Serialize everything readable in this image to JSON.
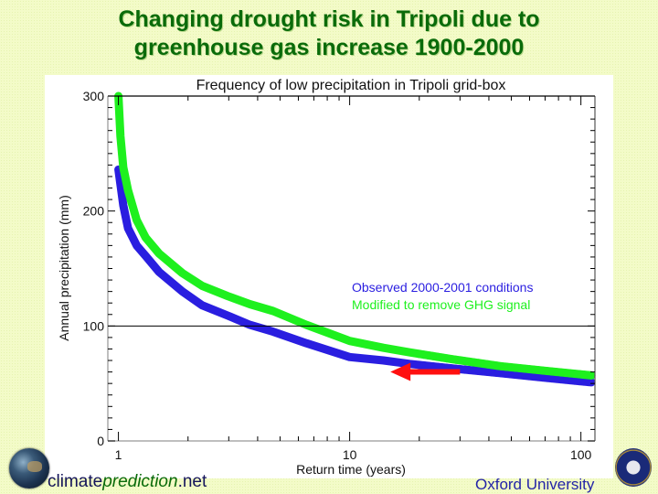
{
  "slide": {
    "title_line1": "Changing drought risk in Tripoli due to",
    "title_line2": "greenhouse gas increase 1900-2000",
    "footer_left_prefix": "climate",
    "footer_left_italic": "prediction",
    "footer_left_suffix": ".net",
    "footer_right": "Oxford University"
  },
  "chart_data": {
    "type": "scatter",
    "title": "Frequency of low precipitation in Tripoli grid-box",
    "xlabel": "Return time (years)",
    "ylabel": "Annual precipitation (mm)",
    "xscale": "log",
    "xlim": [
      0.9,
      115
    ],
    "ylim": [
      0,
      300
    ],
    "xticks": [
      1,
      10,
      100
    ],
    "xtick_labels": [
      "1",
      "10",
      "100"
    ],
    "yticks": [
      0,
      100,
      200,
      300
    ],
    "ytick_labels": [
      "0",
      "100",
      "200",
      "300"
    ],
    "reference_line_y": 100,
    "legend_position": "center-right",
    "series": [
      {
        "name": "Observed 2000-2001 conditions",
        "color": "#2a1ee0",
        "x": [
          1.0,
          1.05,
          1.1,
          1.2,
          1.31,
          1.5,
          1.89,
          2.3,
          2.97,
          3.7,
          4.67,
          6.5,
          10,
          14,
          18.2,
          28,
          45,
          70,
          111
        ],
        "y": [
          236,
          205,
          185,
          170,
          161,
          147,
          130,
          118,
          109,
          101,
          95,
          85,
          73,
          70,
          67,
          63,
          59,
          55,
          51
        ]
      },
      {
        "name": "Modified to remove GHG signal",
        "color": "#1ef01e",
        "x": [
          1.0,
          1.02,
          1.05,
          1.1,
          1.2,
          1.31,
          1.5,
          1.89,
          2.3,
          2.97,
          3.7,
          4.67,
          6.5,
          10,
          14,
          18.2,
          28,
          45,
          70,
          111
        ],
        "y": [
          300,
          265,
          238,
          218,
          192,
          177,
          163,
          146,
          135,
          126,
          119,
          113,
          101,
          87,
          81,
          77,
          71,
          65,
          61,
          57
        ]
      }
    ],
    "annotation_arrow": {
      "color": "#ff1010",
      "from": {
        "x": 30,
        "y": 68
      },
      "to": {
        "x": 15,
        "y": 68
      }
    }
  }
}
